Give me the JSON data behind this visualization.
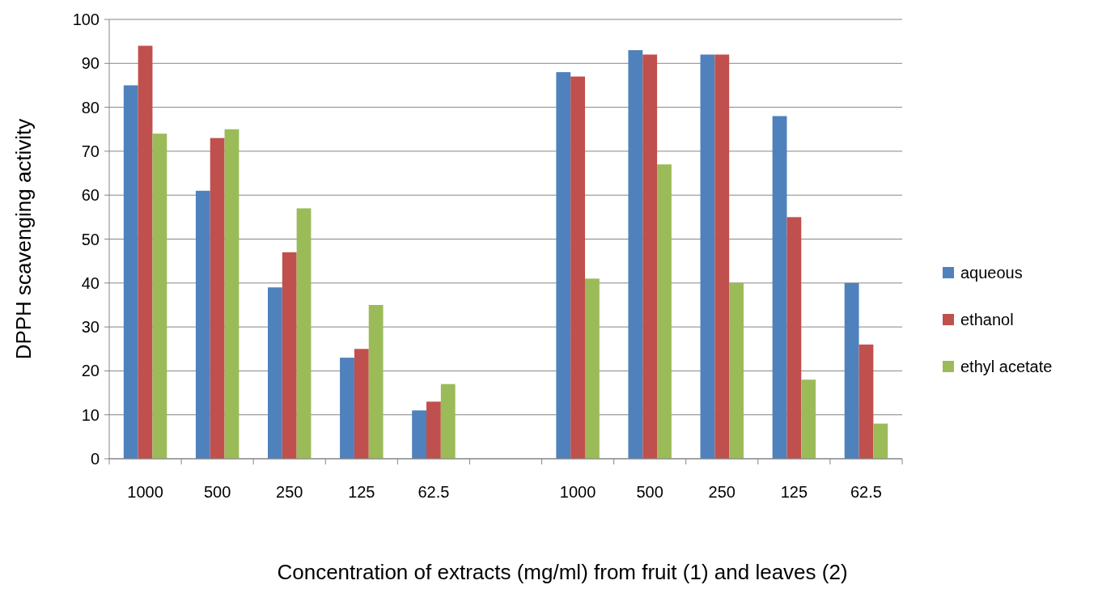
{
  "chart_data": {
    "type": "bar",
    "xlabel": "Concentration of extracts (mg/ml) from fruit (1) and leaves (2)",
    "ylabel": "DPPH scavenging activity",
    "categories": [
      "1000",
      "500",
      "250",
      "125",
      "62.5",
      null,
      "1000",
      "500",
      "250",
      "125",
      "62.5"
    ],
    "series": [
      {
        "name": "aqueous",
        "color": "#4f81bd",
        "values": [
          85,
          61,
          39,
          23,
          11,
          null,
          88,
          93,
          92,
          78,
          40
        ]
      },
      {
        "name": "ethanol",
        "color": "#c0504d",
        "values": [
          94,
          73,
          47,
          25,
          13,
          null,
          87,
          92,
          92,
          55,
          26
        ]
      },
      {
        "name": "ethyl acetate",
        "color": "#9bbb59",
        "values": [
          74,
          75,
          57,
          35,
          17,
          null,
          41,
          67,
          40,
          18,
          8
        ]
      }
    ],
    "ylim": [
      0,
      100
    ],
    "yticks": [
      0,
      10,
      20,
      30,
      40,
      50,
      60,
      70,
      80,
      90,
      100
    ],
    "grid": "y",
    "legend": "right"
  }
}
